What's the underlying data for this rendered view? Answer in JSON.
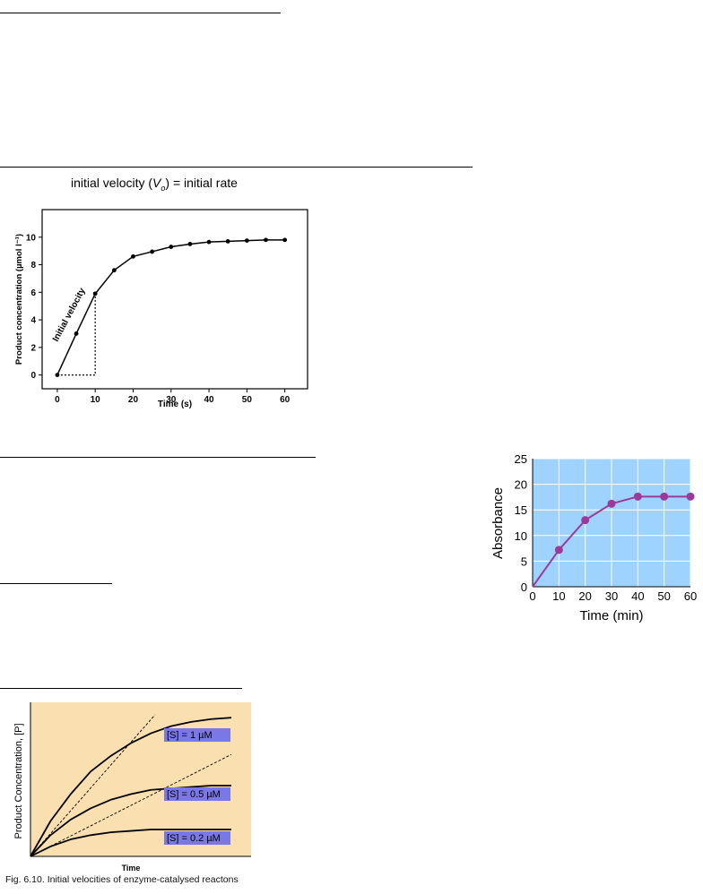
{
  "title": {
    "prefix": "initial velocity (",
    "symbol": "V",
    "subscript": "o",
    "suffix": ") = initial rate"
  },
  "fig_caption": "Fig. 6.10. Initial velocities of enzyme-catalysed reactons",
  "chart_data": [
    {
      "id": "product-vs-time",
      "type": "line",
      "xlabel": "Time (s)",
      "ylabel": "Product concentration (µmol  l⁻¹)",
      "xlim": [
        -4,
        66
      ],
      "ylim": [
        -1,
        12
      ],
      "xticks": [
        0,
        10,
        20,
        30,
        40,
        50,
        60
      ],
      "yticks": [
        0,
        2,
        4,
        6,
        8,
        10
      ],
      "x": [
        0,
        5,
        10,
        15,
        20,
        25,
        30,
        35,
        40,
        45,
        50,
        55,
        60
      ],
      "y": [
        0,
        3.0,
        5.9,
        7.6,
        8.6,
        8.95,
        9.3,
        9.5,
        9.65,
        9.7,
        9.75,
        9.8,
        9.8
      ],
      "annotation": "Initial velocity",
      "grid": false,
      "colors": {
        "frame": "#000000",
        "line": "#000000"
      }
    },
    {
      "id": "absorbance-vs-time",
      "type": "line",
      "xlabel": "Time (min)",
      "ylabel": "Absorbance",
      "xlim": [
        0,
        60
      ],
      "ylim": [
        0,
        25
      ],
      "xticks": [
        0,
        10,
        20,
        30,
        40,
        50,
        60
      ],
      "yticks": [
        0,
        5,
        10,
        15,
        20,
        25
      ],
      "x": [
        0,
        10,
        20,
        30,
        40,
        50,
        60
      ],
      "y": [
        0,
        7.2,
        13,
        16.2,
        17.6,
        17.6,
        17.6
      ],
      "grid": true,
      "colors": {
        "background": "#9fd3ff",
        "grid": "#ffffff",
        "line": "#9b3a9b",
        "point": "#9b3a9b"
      }
    },
    {
      "id": "initial-velocities-substrate",
      "type": "line",
      "xlabel": "Time",
      "ylabel": "Product Concentration, [P]",
      "xlim": [
        0,
        1
      ],
      "ylim": [
        0,
        1
      ],
      "series": [
        {
          "name": "[S] = 1 µM",
          "x": [
            0,
            0.1,
            0.2,
            0.3,
            0.4,
            0.5,
            0.6,
            0.7,
            0.8,
            0.9,
            1.0
          ],
          "y": [
            0,
            0.25,
            0.44,
            0.6,
            0.71,
            0.8,
            0.87,
            0.92,
            0.95,
            0.97,
            0.98
          ]
        },
        {
          "name": "[S] = 0.5 µM",
          "x": [
            0,
            0.1,
            0.2,
            0.3,
            0.4,
            0.5,
            0.6,
            0.7,
            0.8,
            0.9,
            1.0
          ],
          "y": [
            0,
            0.15,
            0.26,
            0.34,
            0.4,
            0.44,
            0.47,
            0.48,
            0.49,
            0.5,
            0.5
          ]
        },
        {
          "name": "[S] = 0.2 µM",
          "x": [
            0,
            0.1,
            0.2,
            0.3,
            0.4,
            0.5,
            0.6,
            0.7,
            0.8,
            0.9,
            1.0
          ],
          "y": [
            0,
            0.07,
            0.12,
            0.15,
            0.17,
            0.18,
            0.19,
            0.19,
            0.19,
            0.19,
            0.19
          ]
        }
      ],
      "tangents": [
        {
          "x": [
            0,
            0.62
          ],
          "y": [
            0,
            1.0
          ]
        },
        {
          "x": [
            0,
            1.0
          ],
          "y": [
            0,
            0.72
          ]
        }
      ],
      "grid": false,
      "colors": {
        "background": "#fadfb0",
        "curve": "#000000",
        "label_bg": "#7a78e6"
      }
    }
  ]
}
